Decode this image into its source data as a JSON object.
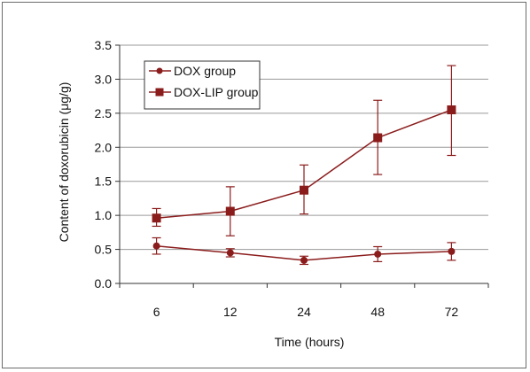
{
  "chart_data": {
    "type": "line",
    "title": "",
    "xlabel": "Time (hours)",
    "ylabel": "Content of doxorubicin (μg/g)",
    "categories": [
      "6",
      "12",
      "24",
      "48",
      "72"
    ],
    "ylim": [
      0,
      3.5
    ],
    "yticks": [
      "0.0",
      "0.5",
      "1.0",
      "1.5",
      "2.0",
      "2.5",
      "3.0",
      "3.5"
    ],
    "grid": "horizontal",
    "legend_position": "top-left",
    "series": [
      {
        "name": "DOX group",
        "marker": "circle",
        "color": "#8b1c1c",
        "values": [
          0.55,
          0.45,
          0.34,
          0.43,
          0.47
        ],
        "error": [
          0.12,
          0.06,
          0.06,
          0.11,
          0.13
        ]
      },
      {
        "name": "DOX-LIP group",
        "marker": "square",
        "color": "#8b1c1c",
        "values": [
          0.96,
          1.06,
          1.37,
          2.14,
          2.55
        ],
        "error_low": [
          0.12,
          0.36,
          0.35,
          0.54,
          0.67
        ],
        "error_high": [
          0.14,
          0.36,
          0.37,
          0.55,
          0.65
        ]
      }
    ]
  }
}
